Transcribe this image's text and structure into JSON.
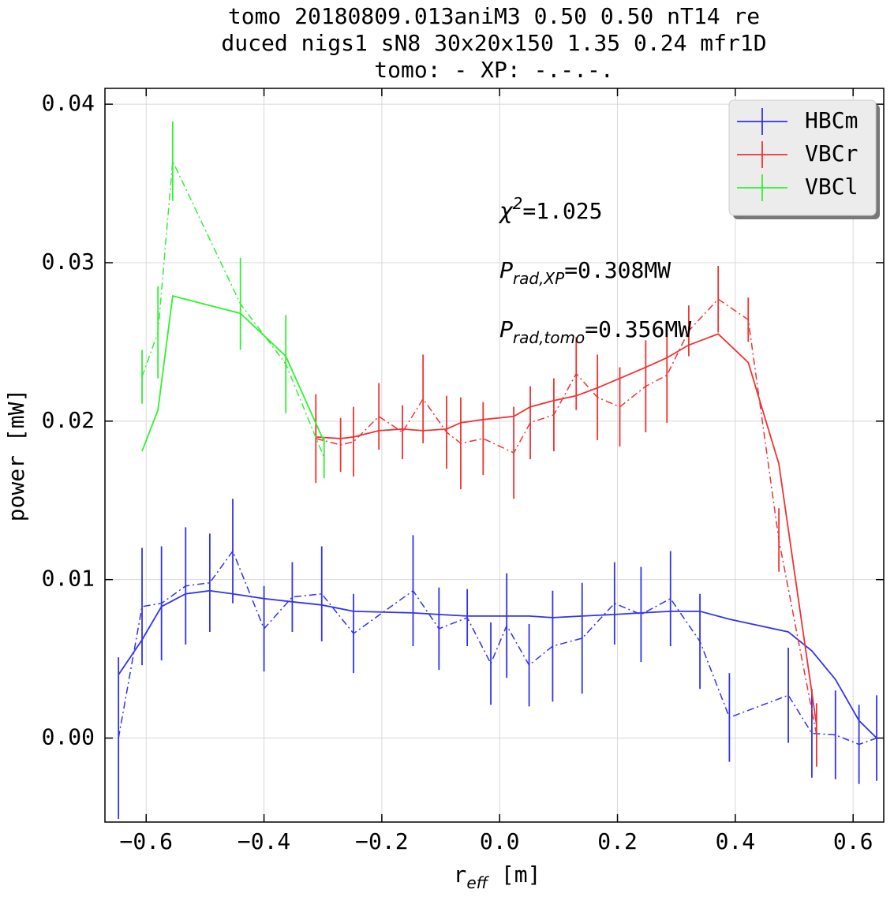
{
  "chart_data": {
    "type": "errorbar-line",
    "title": [
      "tomo 20180809.013aniM3 0.50 0.50 nT14 re",
      "duced nigs1 sN8 30x20x150 1.35 0.24 mfr1D",
      "tomo: -   XP: -.-.-."
    ],
    "x_label": {
      "main": "r",
      "sub": "eff",
      "rest": " [m]"
    },
    "y_label": "power [mW]",
    "xlim": [
      -0.67,
      0.652
    ],
    "ylim": [
      -0.0053,
      0.041
    ],
    "xticks": [
      {
        "value": -0.6,
        "label": "−0.6"
      },
      {
        "value": -0.4,
        "label": "−0.4"
      },
      {
        "value": -0.2,
        "label": "−0.2"
      },
      {
        "value": 0,
        "label": "0.0"
      },
      0.2,
      0.4,
      0.6
    ],
    "yticks": [
      {
        "value": 0,
        "label": "0.00"
      },
      0.01,
      0.02,
      0.03,
      0.04
    ],
    "grid": true,
    "legend": "upper right",
    "annotations": [
      {
        "main": "χ",
        "sup": "2",
        "rest": "=1.025"
      },
      {
        "main": "P",
        "sub": "rad,XP",
        "rest": "=0.308MW"
      },
      {
        "main": "P",
        "sub": "rad,tomo",
        "rest": "=0.356MW"
      }
    ],
    "series": [
      {
        "name": "HBCm",
        "color": "#3232f0",
        "x": [
          -0.647,
          -0.607,
          -0.574,
          -0.533,
          -0.492,
          -0.453,
          -0.4,
          -0.352,
          -0.302,
          -0.248,
          -0.147,
          -0.103,
          -0.055,
          -0.015,
          0.012,
          0.05,
          0.09,
          0.14,
          0.195,
          0.24,
          0.29,
          0.34,
          0.39,
          0.49,
          0.53,
          0.57,
          0.61,
          0.64
        ],
        "values": [
          0.0,
          0.0083,
          0.0085,
          0.0096,
          0.0098,
          0.0118,
          0.0069,
          0.0089,
          0.0091,
          0.0066,
          0.0093,
          0.0069,
          0.0076,
          0.0047,
          0.0071,
          0.0046,
          0.0058,
          0.0063,
          0.0085,
          0.0078,
          0.0088,
          0.0061,
          0.0013,
          0.0027,
          0.0003,
          0.0002,
          -0.0004,
          0.0
        ],
        "errors": [
          0.0051,
          0.0037,
          0.0036,
          0.0037,
          0.0031,
          0.0033,
          0.0027,
          0.0022,
          0.003,
          0.0025,
          0.0035,
          0.0026,
          0.0018,
          0.0026,
          0.0033,
          0.0026,
          0.0035,
          0.0035,
          0.0026,
          0.003,
          0.003,
          0.003,
          0.0028,
          0.003,
          0.0028,
          0.0028,
          0.0025,
          0.0027
        ],
        "tomo": [
          0.004,
          0.0062,
          0.0083,
          0.0091,
          0.0093,
          0.0091,
          0.0088,
          0.0086,
          0.0084,
          0.008,
          0.0079,
          0.0078,
          0.0077,
          0.0077,
          0.0077,
          0.0077,
          0.0076,
          0.0077,
          0.0078,
          0.0079,
          0.008,
          0.008,
          0.0075,
          0.0067,
          0.0055,
          0.0037,
          0.0011,
          0.0
        ]
      },
      {
        "name": "VBCr",
        "color": "#f03232",
        "x": [
          -0.312,
          -0.27,
          -0.248,
          -0.205,
          -0.165,
          -0.13,
          -0.09,
          -0.066,
          -0.028,
          0.024,
          0.052,
          0.092,
          0.13,
          0.166,
          0.204,
          0.248,
          0.284,
          0.321,
          0.371,
          0.422,
          0.474,
          0.538
        ],
        "values": [
          0.0189,
          0.0185,
          0.0187,
          0.0203,
          0.0193,
          0.0214,
          0.0193,
          0.0186,
          0.0189,
          0.018,
          0.0199,
          0.0204,
          0.023,
          0.0215,
          0.0209,
          0.0222,
          0.0229,
          0.0257,
          0.0277,
          0.0264,
          0.0125,
          0.0002
        ],
        "errors": [
          0.0028,
          0.0017,
          0.0022,
          0.0021,
          0.0017,
          0.0028,
          0.0023,
          0.0029,
          0.0023,
          0.0029,
          0.0023,
          0.0023,
          0.0023,
          0.0027,
          0.0025,
          0.0029,
          0.003,
          0.0016,
          0.0021,
          0.0014,
          0.002,
          0.002
        ],
        "tomo": [
          0.019,
          0.0189,
          0.019,
          0.0194,
          0.0195,
          0.0194,
          0.0195,
          0.0199,
          0.0201,
          0.0203,
          0.0209,
          0.0213,
          0.0216,
          0.0221,
          0.0227,
          0.0234,
          0.024,
          0.0248,
          0.0255,
          0.0237,
          0.0173,
          0.0008
        ]
      },
      {
        "name": "VBCl",
        "color": "#32f032",
        "x": [
          -0.607,
          -0.58,
          -0.555,
          -0.44,
          -0.363,
          -0.298
        ],
        "values": [
          0.0228,
          0.0256,
          0.0364,
          0.0274,
          0.0236,
          0.0177
        ],
        "errors": [
          0.0017,
          0.0029,
          0.0025,
          0.0029,
          0.0031,
          0.0013
        ],
        "tomo": [
          0.0181,
          0.0207,
          0.0279,
          0.0268,
          0.0241,
          0.0187
        ]
      }
    ]
  }
}
